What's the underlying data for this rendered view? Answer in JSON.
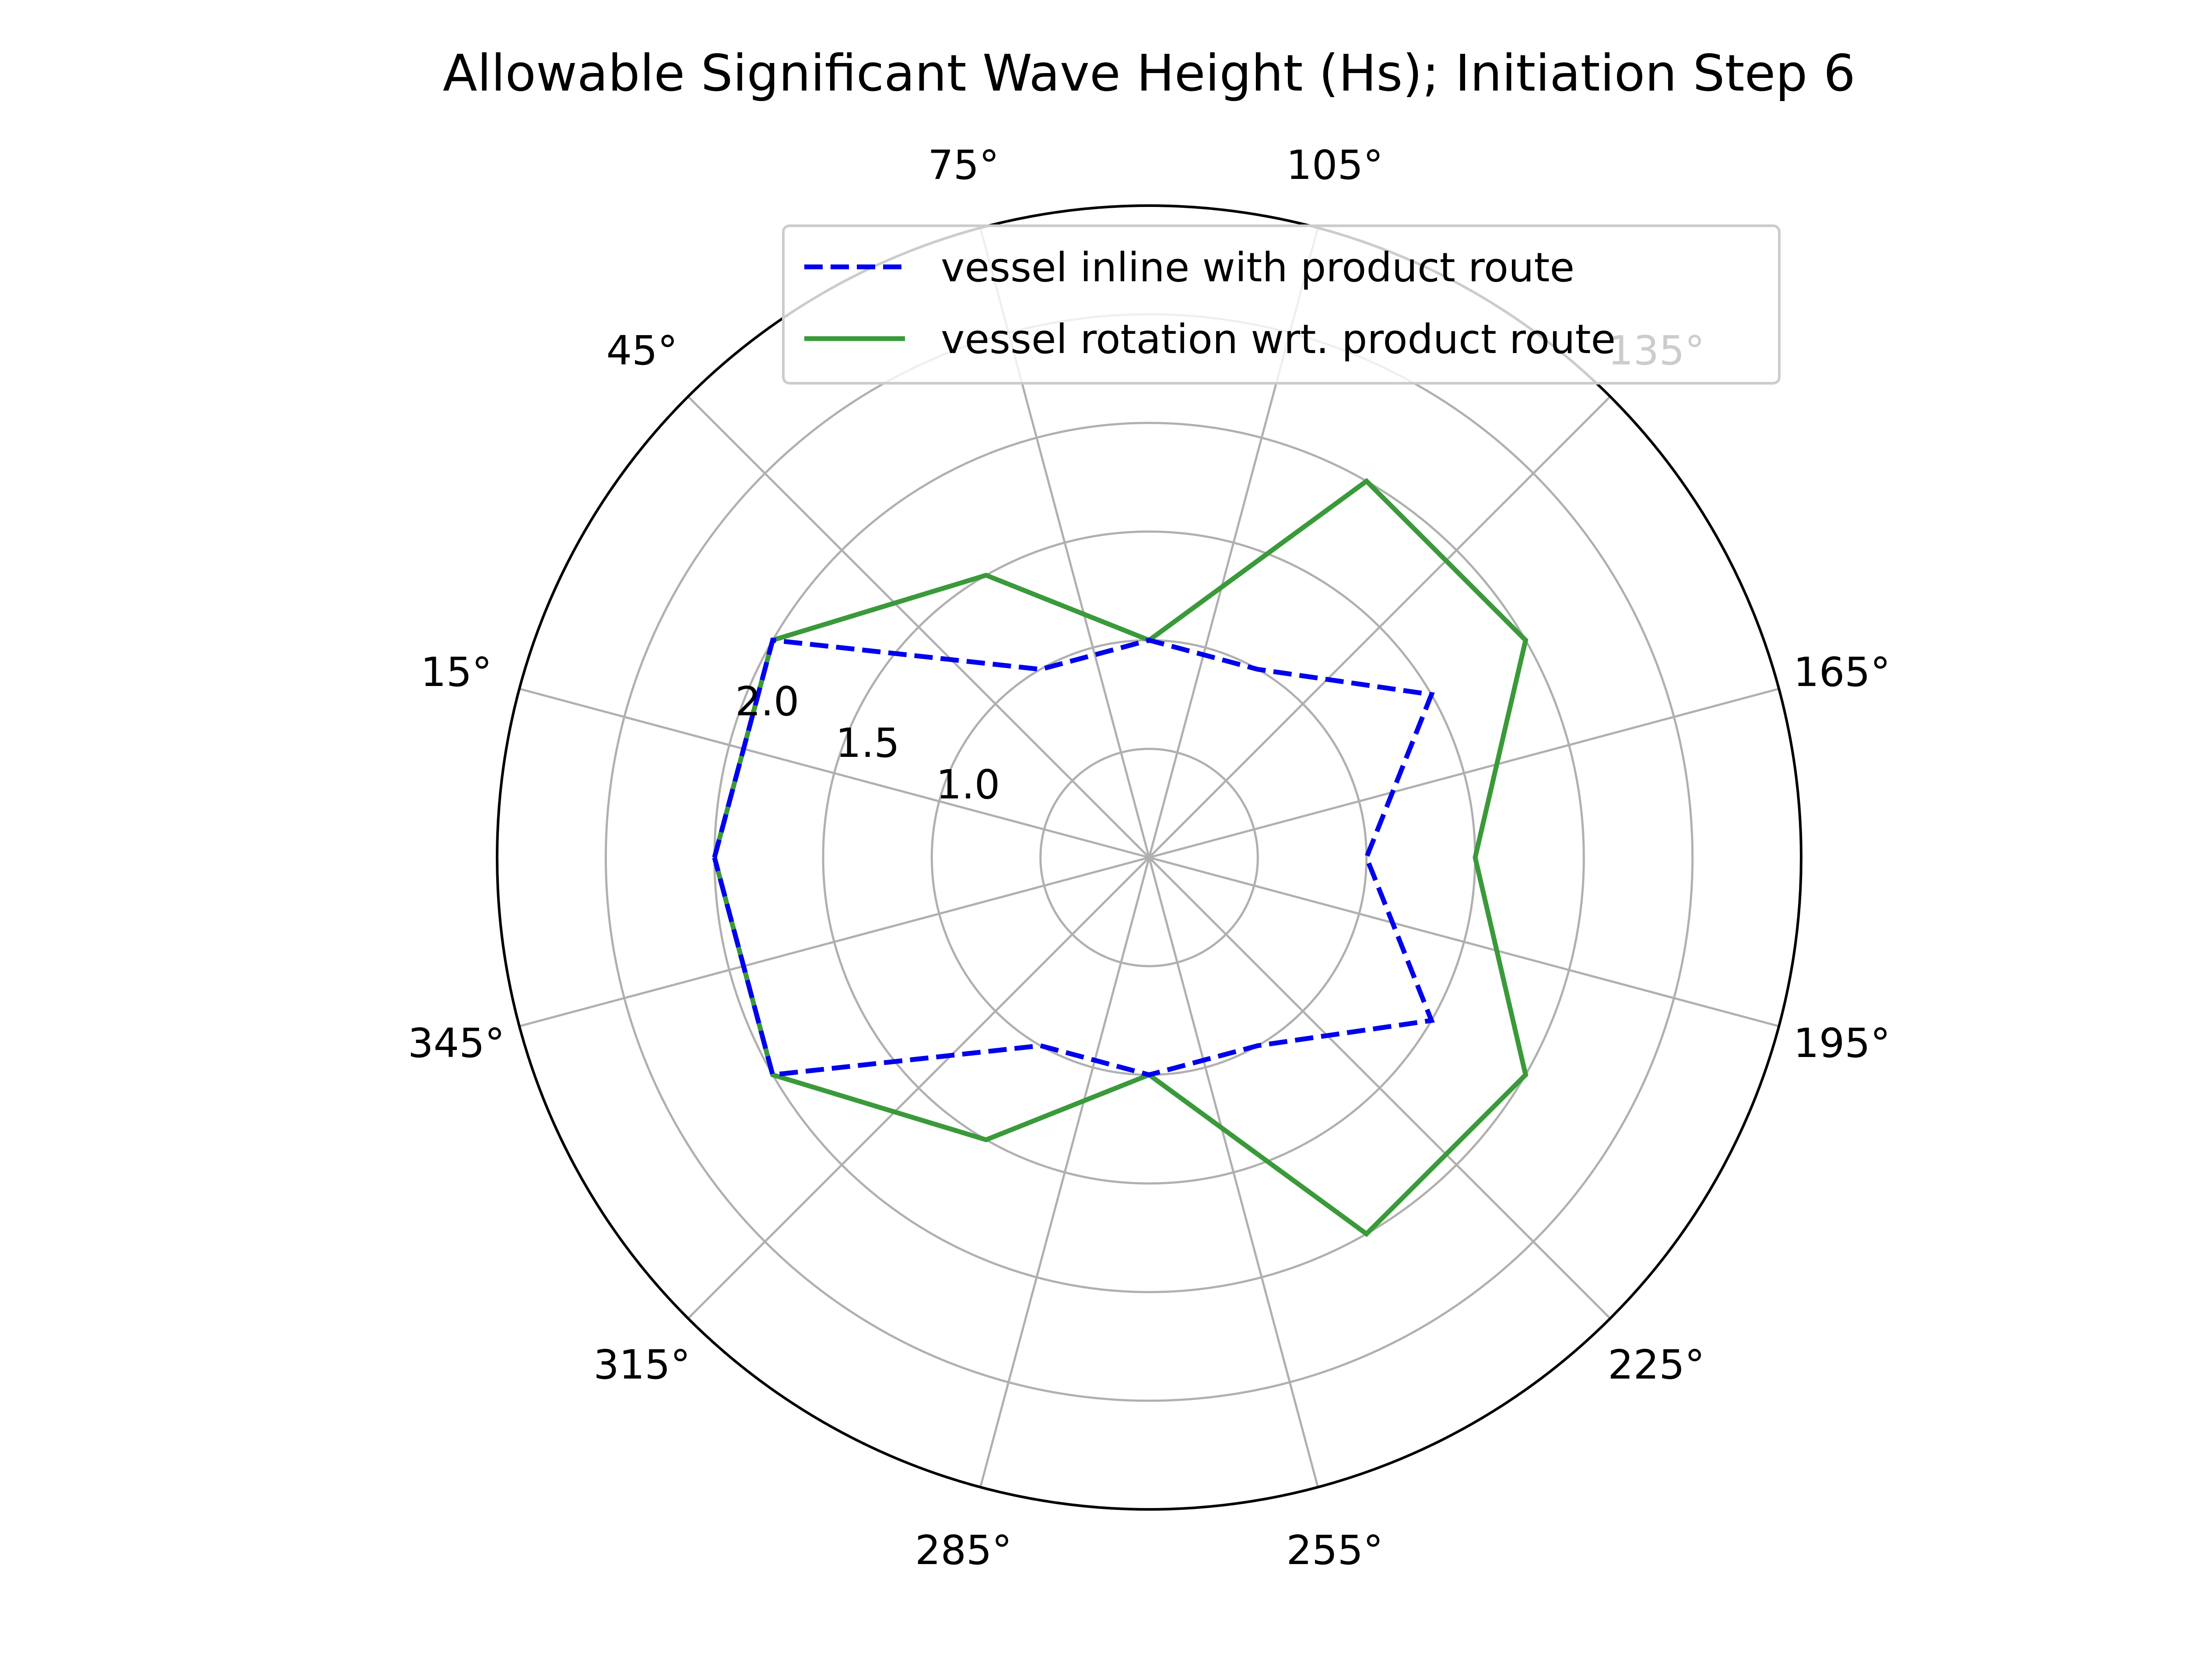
{
  "chart_data": {
    "type": "polar-line",
    "title": "Allowable Significant Wave Height (Hs); Initiation Step 6",
    "angle_unit": "degrees",
    "angle_ticks": [
      {
        "angle": 15,
        "label": "15°"
      },
      {
        "angle": 45,
        "label": "45°"
      },
      {
        "angle": 75,
        "label": "75°"
      },
      {
        "angle": 105,
        "label": "105°"
      },
      {
        "angle": 135,
        "label": "135°"
      },
      {
        "angle": 165,
        "label": "165°"
      },
      {
        "angle": 195,
        "label": "195°"
      },
      {
        "angle": 225,
        "label": "225°"
      },
      {
        "angle": 255,
        "label": "255°"
      },
      {
        "angle": 285,
        "label": "285°"
      },
      {
        "angle": 315,
        "label": "315°"
      },
      {
        "angle": 345,
        "label": "345°"
      }
    ],
    "radial_ticks": [
      {
        "value": 1.0,
        "label": "1.0"
      },
      {
        "value": 1.5,
        "label": "1.5"
      },
      {
        "value": 2.0,
        "label": "2.0"
      }
    ],
    "radial_range": [
      0,
      3.0
    ],
    "grid": true,
    "legend": {
      "placement": "top-right"
    },
    "angles": [
      0,
      30,
      60,
      90,
      120,
      150,
      180,
      210,
      240,
      270,
      300,
      330
    ],
    "series": [
      {
        "name": "vessel rotation wrt. product route",
        "color": "#3a9a3a",
        "style": "solid",
        "values": [
          2.0,
          2.0,
          1.5,
          1.0,
          2.0,
          2.0,
          1.5,
          2.0,
          2.0,
          1.0,
          1.5,
          2.0
        ]
      },
      {
        "name": "vessel inline with product route",
        "color": "#0000ee",
        "style": "dashed",
        "values": [
          2.0,
          2.0,
          1.0,
          1.0,
          1.0,
          1.5,
          1.0,
          1.5,
          1.0,
          1.0,
          1.0,
          2.0
        ]
      }
    ]
  }
}
